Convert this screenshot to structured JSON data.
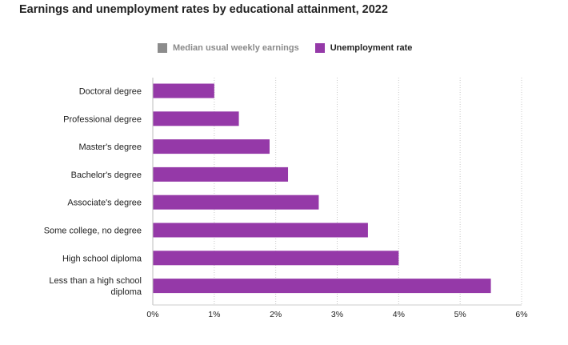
{
  "title": "Earnings and unemployment rates by educational attainment, 2022",
  "legend": [
    {
      "label": "Median usual weekly earnings",
      "color": "#8c8c8c",
      "active": false
    },
    {
      "label": "Unemployment rate",
      "color": "#9539a8",
      "active": true
    }
  ],
  "chart_data": {
    "type": "bar",
    "orientation": "horizontal",
    "title": "Earnings and unemployment rates by educational attainment, 2022",
    "categories": [
      "Doctoral degree",
      "Professional degree",
      "Master's degree",
      "Bachelor's degree",
      "Associate's degree",
      "Some college, no degree",
      "High school diploma",
      "Less than a high school diploma"
    ],
    "series": [
      {
        "name": "Unemployment rate",
        "color": "#9539a8",
        "values": [
          1.0,
          1.4,
          1.9,
          2.2,
          2.7,
          3.5,
          4.0,
          5.5
        ]
      }
    ],
    "xlim": [
      0,
      6
    ],
    "xticks": [
      0,
      1,
      2,
      3,
      4,
      5,
      6
    ],
    "xtick_labels": [
      "0%",
      "1%",
      "2%",
      "3%",
      "4%",
      "5%",
      "6%"
    ],
    "grid": "vertical-dotted",
    "legend_position": "top"
  }
}
